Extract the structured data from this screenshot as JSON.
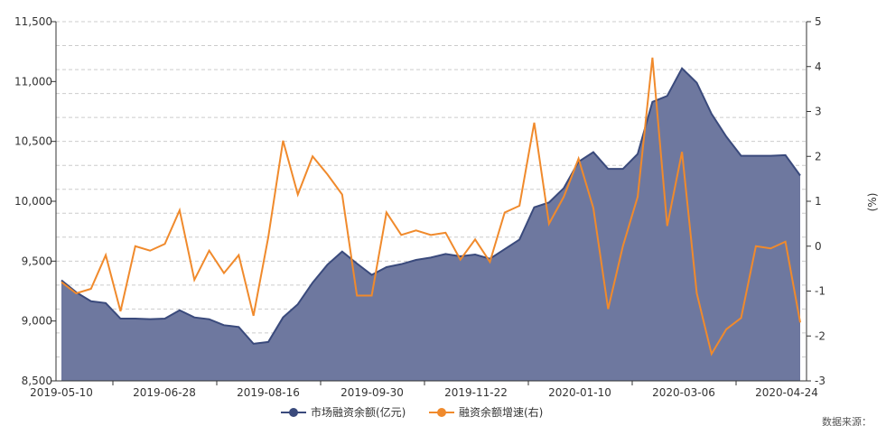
{
  "chart_data": {
    "type": "area+line",
    "title": "",
    "xlabel": "",
    "ylabel": "",
    "y2label": "(%)",
    "x_tick_labels": [
      "2019-05-10",
      "2019-06-28",
      "2019-08-16",
      "2019-09-30",
      "2019-11-22",
      "2020-01-10",
      "2020-03-06",
      "2020-04-24"
    ],
    "ylim_left": [
      8500,
      11500
    ],
    "yticks_left": [
      "8,500",
      "9,000",
      "9,500",
      "10,000",
      "10,500",
      "11,000",
      "11,500"
    ],
    "ylim_right": [
      -3,
      5
    ],
    "yticks_right": [
      "-3",
      "-2",
      "-1",
      "0",
      "1",
      "2",
      "3",
      "4",
      "5"
    ],
    "grid": true,
    "legend": "bottom-center",
    "series": [
      {
        "name": "市场融资余额(亿元)",
        "axis": "left",
        "kind": "area",
        "color": "#3a4a7c",
        "fill": "#6e789f",
        "values": [
          9340,
          9240,
          9165,
          9150,
          9020,
          9020,
          9015,
          9020,
          9090,
          9030,
          9015,
          8965,
          8950,
          8810,
          8825,
          9030,
          9140,
          9320,
          9470,
          9580,
          9480,
          9385,
          9450,
          9475,
          9510,
          9530,
          9560,
          9540,
          9555,
          9520,
          9600,
          9680,
          9950,
          9990,
          10110,
          10330,
          10410,
          10270,
          10270,
          10395,
          10830,
          10880,
          11110,
          10990,
          10730,
          10540,
          10380,
          10380,
          10380,
          10385,
          10215
        ]
      },
      {
        "name": "融资余额增速(右)",
        "axis": "right",
        "kind": "line",
        "color": "#f08a2c",
        "values": [
          -0.8,
          -1.05,
          -0.95,
          -0.2,
          -1.45,
          0,
          -0.1,
          0.05,
          0.8,
          -0.75,
          -0.1,
          -0.6,
          -0.2,
          -1.55,
          0.2,
          2.35,
          1.15,
          2.0,
          1.6,
          1.15,
          -1.1,
          -1.1,
          0.75,
          0.25,
          0.35,
          0.25,
          0.3,
          -0.3,
          0.15,
          -0.35,
          0.75,
          0.9,
          2.75,
          0.5,
          1.1,
          1.95,
          0.85,
          -1.4,
          0,
          1.1,
          4.2,
          0.45,
          2.1,
          -1.05,
          -2.4,
          -1.85,
          -1.6,
          0,
          -0.05,
          0.1,
          -1.7
        ]
      }
    ]
  },
  "source_text": "数据来源："
}
